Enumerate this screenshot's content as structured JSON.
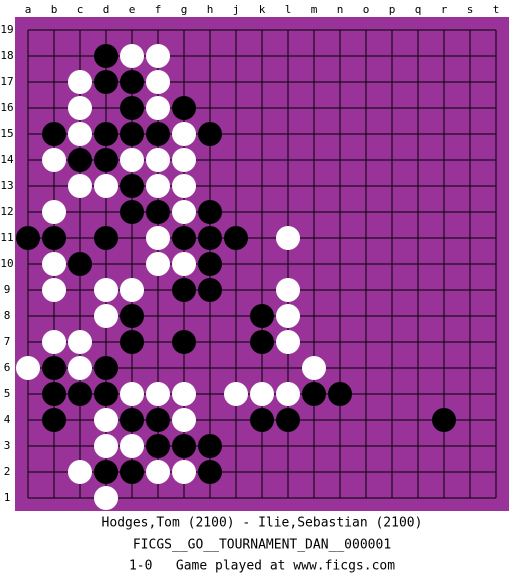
{
  "columns": [
    "a",
    "b",
    "c",
    "d",
    "e",
    "f",
    "g",
    "h",
    "j",
    "k",
    "l",
    "m",
    "n",
    "o",
    "p",
    "q",
    "r",
    "s",
    "t"
  ],
  "rows": [
    19,
    18,
    17,
    16,
    15,
    14,
    13,
    12,
    11,
    10,
    9,
    8,
    7,
    6,
    5,
    4,
    3,
    2,
    1
  ],
  "stones": [
    {
      "col": "d",
      "row": 18,
      "color": "black"
    },
    {
      "col": "e",
      "row": 18,
      "color": "white"
    },
    {
      "col": "f",
      "row": 18,
      "color": "white"
    },
    {
      "col": "c",
      "row": 17,
      "color": "white"
    },
    {
      "col": "d",
      "row": 17,
      "color": "black"
    },
    {
      "col": "e",
      "row": 17,
      "color": "black"
    },
    {
      "col": "f",
      "row": 17,
      "color": "white"
    },
    {
      "col": "c",
      "row": 16,
      "color": "white"
    },
    {
      "col": "e",
      "row": 16,
      "color": "black"
    },
    {
      "col": "f",
      "row": 16,
      "color": "white"
    },
    {
      "col": "g",
      "row": 16,
      "color": "black"
    },
    {
      "col": "b",
      "row": 15,
      "color": "black"
    },
    {
      "col": "c",
      "row": 15,
      "color": "white"
    },
    {
      "col": "d",
      "row": 15,
      "color": "black"
    },
    {
      "col": "e",
      "row": 15,
      "color": "black"
    },
    {
      "col": "f",
      "row": 15,
      "color": "black"
    },
    {
      "col": "g",
      "row": 15,
      "color": "white"
    },
    {
      "col": "h",
      "row": 15,
      "color": "black"
    },
    {
      "col": "b",
      "row": 14,
      "color": "white"
    },
    {
      "col": "c",
      "row": 14,
      "color": "black"
    },
    {
      "col": "d",
      "row": 14,
      "color": "black"
    },
    {
      "col": "e",
      "row": 14,
      "color": "white"
    },
    {
      "col": "f",
      "row": 14,
      "color": "white"
    },
    {
      "col": "g",
      "row": 14,
      "color": "white"
    },
    {
      "col": "c",
      "row": 13,
      "color": "white"
    },
    {
      "col": "d",
      "row": 13,
      "color": "white"
    },
    {
      "col": "e",
      "row": 13,
      "color": "black"
    },
    {
      "col": "f",
      "row": 13,
      "color": "white"
    },
    {
      "col": "g",
      "row": 13,
      "color": "white"
    },
    {
      "col": "b",
      "row": 12,
      "color": "white"
    },
    {
      "col": "e",
      "row": 12,
      "color": "black"
    },
    {
      "col": "f",
      "row": 12,
      "color": "black"
    },
    {
      "col": "g",
      "row": 12,
      "color": "white"
    },
    {
      "col": "h",
      "row": 12,
      "color": "black"
    },
    {
      "col": "a",
      "row": 11,
      "color": "black"
    },
    {
      "col": "b",
      "row": 11,
      "color": "black"
    },
    {
      "col": "d",
      "row": 11,
      "color": "black"
    },
    {
      "col": "f",
      "row": 11,
      "color": "white"
    },
    {
      "col": "g",
      "row": 11,
      "color": "black"
    },
    {
      "col": "h",
      "row": 11,
      "color": "black"
    },
    {
      "col": "j",
      "row": 11,
      "color": "black"
    },
    {
      "col": "l",
      "row": 11,
      "color": "white"
    },
    {
      "col": "b",
      "row": 10,
      "color": "white"
    },
    {
      "col": "c",
      "row": 10,
      "color": "black"
    },
    {
      "col": "f",
      "row": 10,
      "color": "white"
    },
    {
      "col": "g",
      "row": 10,
      "color": "white"
    },
    {
      "col": "h",
      "row": 10,
      "color": "black"
    },
    {
      "col": "b",
      "row": 9,
      "color": "white"
    },
    {
      "col": "d",
      "row": 9,
      "color": "white"
    },
    {
      "col": "e",
      "row": 9,
      "color": "white"
    },
    {
      "col": "g",
      "row": 9,
      "color": "black"
    },
    {
      "col": "h",
      "row": 9,
      "color": "black"
    },
    {
      "col": "l",
      "row": 9,
      "color": "white"
    },
    {
      "col": "d",
      "row": 8,
      "color": "white"
    },
    {
      "col": "e",
      "row": 8,
      "color": "black"
    },
    {
      "col": "k",
      "row": 8,
      "color": "black"
    },
    {
      "col": "l",
      "row": 8,
      "color": "white"
    },
    {
      "col": "b",
      "row": 7,
      "color": "white"
    },
    {
      "col": "c",
      "row": 7,
      "color": "white"
    },
    {
      "col": "e",
      "row": 7,
      "color": "black"
    },
    {
      "col": "g",
      "row": 7,
      "color": "black"
    },
    {
      "col": "k",
      "row": 7,
      "color": "black"
    },
    {
      "col": "l",
      "row": 7,
      "color": "white"
    },
    {
      "col": "a",
      "row": 6,
      "color": "white"
    },
    {
      "col": "b",
      "row": 6,
      "color": "black"
    },
    {
      "col": "c",
      "row": 6,
      "color": "white"
    },
    {
      "col": "d",
      "row": 6,
      "color": "black"
    },
    {
      "col": "m",
      "row": 6,
      "color": "white"
    },
    {
      "col": "b",
      "row": 5,
      "color": "black"
    },
    {
      "col": "c",
      "row": 5,
      "color": "black"
    },
    {
      "col": "d",
      "row": 5,
      "color": "black"
    },
    {
      "col": "e",
      "row": 5,
      "color": "white"
    },
    {
      "col": "f",
      "row": 5,
      "color": "white"
    },
    {
      "col": "g",
      "row": 5,
      "color": "white"
    },
    {
      "col": "j",
      "row": 5,
      "color": "white"
    },
    {
      "col": "k",
      "row": 5,
      "color": "white"
    },
    {
      "col": "l",
      "row": 5,
      "color": "white"
    },
    {
      "col": "m",
      "row": 5,
      "color": "black"
    },
    {
      "col": "n",
      "row": 5,
      "color": "black"
    },
    {
      "col": "b",
      "row": 4,
      "color": "black"
    },
    {
      "col": "d",
      "row": 4,
      "color": "white"
    },
    {
      "col": "e",
      "row": 4,
      "color": "black"
    },
    {
      "col": "f",
      "row": 4,
      "color": "black"
    },
    {
      "col": "g",
      "row": 4,
      "color": "white"
    },
    {
      "col": "k",
      "row": 4,
      "color": "black"
    },
    {
      "col": "l",
      "row": 4,
      "color": "black"
    },
    {
      "col": "r",
      "row": 4,
      "color": "black"
    },
    {
      "col": "d",
      "row": 3,
      "color": "white"
    },
    {
      "col": "e",
      "row": 3,
      "color": "white"
    },
    {
      "col": "f",
      "row": 3,
      "color": "black"
    },
    {
      "col": "g",
      "row": 3,
      "color": "black"
    },
    {
      "col": "h",
      "row": 3,
      "color": "black"
    },
    {
      "col": "c",
      "row": 2,
      "color": "white"
    },
    {
      "col": "d",
      "row": 2,
      "color": "black"
    },
    {
      "col": "e",
      "row": 2,
      "color": "black"
    },
    {
      "col": "f",
      "row": 2,
      "color": "white"
    },
    {
      "col": "g",
      "row": 2,
      "color": "white"
    },
    {
      "col": "h",
      "row": 2,
      "color": "black"
    },
    {
      "col": "d",
      "row": 1,
      "color": "white"
    }
  ],
  "footer": [
    "Hodges,Tom (2100) - Ilie,Sebastian (2100)",
    "FICGS__GO__TOURNAMENT_DAN__000001",
    "1-0   Game played at www.ficgs.com"
  ]
}
